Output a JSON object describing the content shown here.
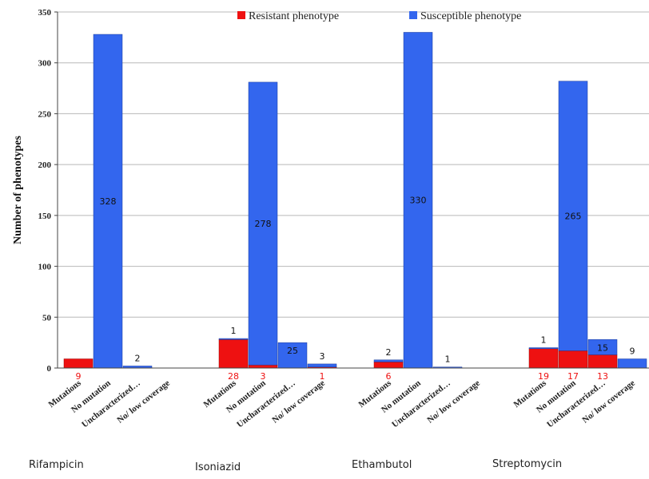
{
  "chart_data": {
    "type": "bar",
    "stacked": true,
    "ylabel": "Number of phenotypes",
    "ylim": [
      0,
      350
    ],
    "yticks": [
      0,
      50,
      100,
      150,
      200,
      250,
      300,
      350
    ],
    "grid": true,
    "legend_position": "top",
    "colors": {
      "resistant": "#ee1111",
      "susceptible": "#3366ee"
    },
    "groups": [
      {
        "name": "Rifampicin",
        "bars": [
          {
            "category": "Mutations",
            "resistant": 9,
            "susceptible": 0,
            "resistant_label": "9",
            "susceptible_label": ""
          },
          {
            "category": "No mutation",
            "resistant": 0,
            "susceptible": 328,
            "resistant_label": "",
            "susceptible_label": "328"
          },
          {
            "category": "Uncharacterized…",
            "resistant": 0,
            "susceptible": 2,
            "resistant_label": "",
            "susceptible_label": "2"
          },
          {
            "category": "No/ low coverage",
            "resistant": 0,
            "susceptible": 0,
            "resistant_label": "",
            "susceptible_label": ""
          }
        ]
      },
      {
        "name": "Isoniazid",
        "bars": [
          {
            "category": "Mutations",
            "resistant": 28,
            "susceptible": 1,
            "resistant_label": "28",
            "susceptible_label": "1"
          },
          {
            "category": "No mutation",
            "resistant": 3,
            "susceptible": 278,
            "resistant_label": "3",
            "susceptible_label": "278"
          },
          {
            "category": "Uncharacterized…",
            "resistant": 0,
            "susceptible": 25,
            "resistant_label": "",
            "susceptible_label": "25"
          },
          {
            "category": "No/ low coverage",
            "resistant": 1,
            "susceptible": 3,
            "resistant_label": "1",
            "susceptible_label": "3"
          }
        ]
      },
      {
        "name": "Ethambutol",
        "bars": [
          {
            "category": "Mutations",
            "resistant": 6,
            "susceptible": 2,
            "resistant_label": "6",
            "susceptible_label": "2"
          },
          {
            "category": "No mutation",
            "resistant": 0,
            "susceptible": 330,
            "resistant_label": "",
            "susceptible_label": "330"
          },
          {
            "category": "Uncharacterized…",
            "resistant": 0,
            "susceptible": 1,
            "resistant_label": "",
            "susceptible_label": "1"
          },
          {
            "category": "No/ low coverage",
            "resistant": 0,
            "susceptible": 0,
            "resistant_label": "",
            "susceptible_label": ""
          }
        ]
      },
      {
        "name": "Streptomycin",
        "bars": [
          {
            "category": "Mutations",
            "resistant": 19,
            "susceptible": 1,
            "resistant_label": "19",
            "susceptible_label": "1"
          },
          {
            "category": "No mutation",
            "resistant": 17,
            "susceptible": 265,
            "resistant_label": "17",
            "susceptible_label": "265"
          },
          {
            "category": "Uncharacterized…",
            "resistant": 13,
            "susceptible": 15,
            "resistant_label": "13",
            "susceptible_label": "15"
          },
          {
            "category": "No/ low coverage",
            "resistant": 0,
            "susceptible": 9,
            "resistant_label": "",
            "susceptible_label": "9"
          }
        ]
      }
    ],
    "series": [
      {
        "name": "Resistant phenotype",
        "key": "resistant"
      },
      {
        "name": "Susceptible phenotype",
        "key": "susceptible"
      }
    ]
  }
}
